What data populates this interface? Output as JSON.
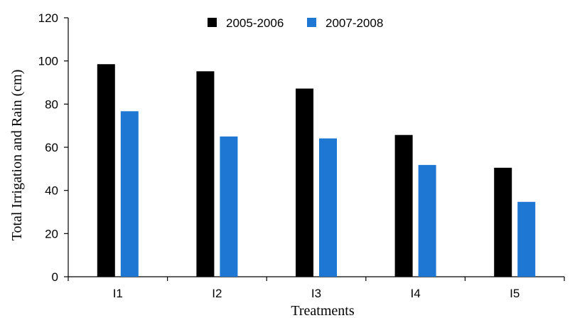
{
  "chart_data": {
    "type": "bar",
    "xlabel": "Treatments",
    "ylabel": "Total Irrigation and Rain (cm)",
    "ylim": [
      0,
      120
    ],
    "yticks": [
      0,
      20,
      40,
      60,
      80,
      100,
      120
    ],
    "categories": [
      "I1",
      "I2",
      "I3",
      "I4",
      "I5"
    ],
    "series": [
      {
        "name": "2005-2006",
        "color": "#000000",
        "values": [
          98.5,
          95.2,
          87.2,
          65.7,
          50.5
        ]
      },
      {
        "name": "2007-2008",
        "color": "#1f77d4",
        "values": [
          76.7,
          65.0,
          64.1,
          51.8,
          34.7
        ]
      }
    ],
    "legend_position": "top",
    "grid": false
  }
}
